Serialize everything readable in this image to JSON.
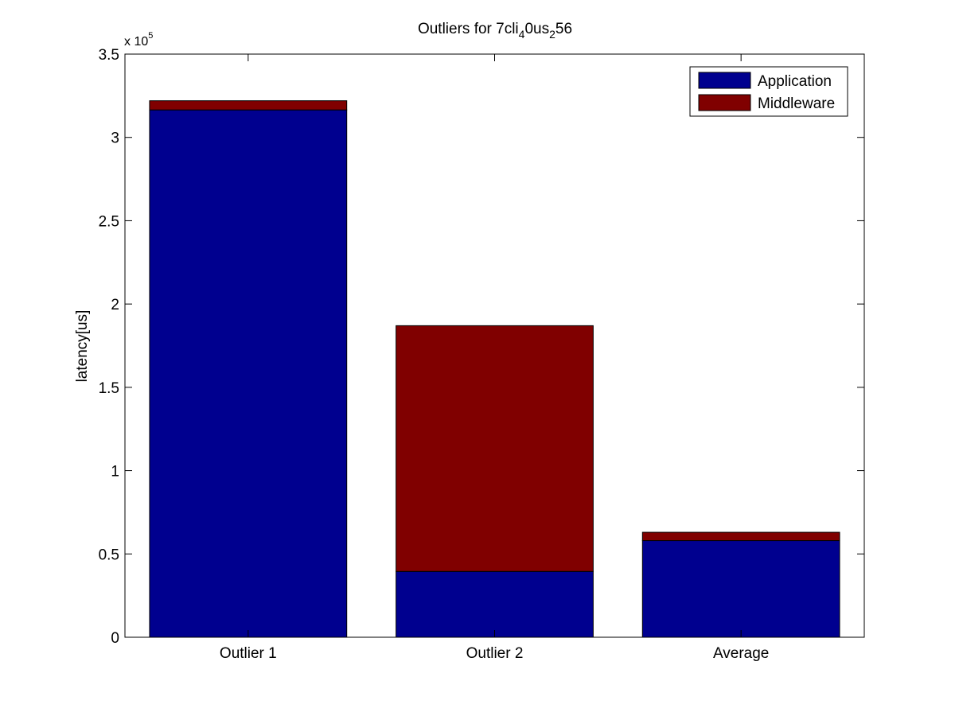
{
  "chart_data": {
    "type": "bar",
    "stacked": true,
    "title": {
      "prefix": "Outliers for 7cli",
      "sub1": "4",
      "mid": "0us",
      "sub2": "2",
      "suffix": "56"
    },
    "xlabel": "",
    "ylabel": "latency[us]",
    "exponent_label": {
      "base": "x 10",
      "power": "5"
    },
    "categories": [
      "Outlier 1",
      "Outlier 2",
      "Average"
    ],
    "series": [
      {
        "name": "Application",
        "color": "#00008f",
        "values": [
          316500,
          39500,
          58000
        ]
      },
      {
        "name": "Middleware",
        "color": "#800000",
        "values": [
          5500,
          147500,
          5000
        ]
      }
    ],
    "ylim": [
      0,
      350000
    ],
    "yticks": [
      {
        "value": 0,
        "label": "0"
      },
      {
        "value": 50000,
        "label": "0.5"
      },
      {
        "value": 100000,
        "label": "1"
      },
      {
        "value": 150000,
        "label": "1.5"
      },
      {
        "value": 200000,
        "label": "2"
      },
      {
        "value": 250000,
        "label": "2.5"
      },
      {
        "value": 300000,
        "label": "3"
      },
      {
        "value": 350000,
        "label": "3.5"
      }
    ],
    "grid": false,
    "legend_position": "top-right"
  }
}
